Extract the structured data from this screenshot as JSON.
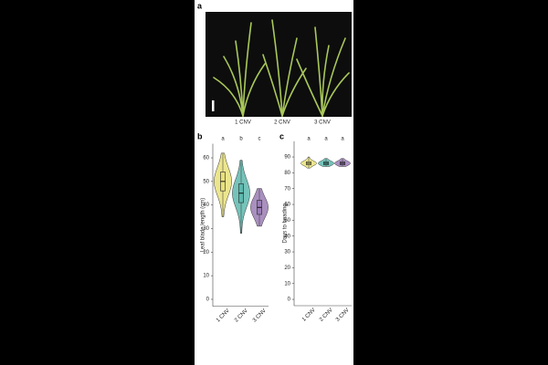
{
  "figure": {
    "panel_label": "a",
    "groups": [
      "1 CNV",
      "2 CNV",
      "3 CNV"
    ]
  },
  "chart_data": [
    {
      "type": "violin",
      "panel_label": "b",
      "y_label": "Leaf blade length (cm)",
      "categories": [
        "1 CNV",
        "2 CNV",
        "3 CNV"
      ],
      "letters": [
        "a",
        "b",
        "c"
      ],
      "colors": [
        "#e8e07a",
        "#5db8ae",
        "#9a7db4"
      ],
      "min": [
        35,
        28,
        31
      ],
      "q1": [
        46,
        41,
        36
      ],
      "median": [
        50,
        45,
        39
      ],
      "q3": [
        54,
        49,
        42
      ],
      "max": [
        62,
        59,
        47
      ],
      "ylim": [
        -3,
        66
      ],
      "yticks": [
        0,
        10,
        20,
        30,
        40,
        50,
        60
      ]
    },
    {
      "type": "violin",
      "panel_label": "c",
      "y_label": "Days to heading",
      "categories": [
        "1 CNV",
        "2 CNV",
        "3 CNV"
      ],
      "letters": [
        "a",
        "a",
        "a"
      ],
      "colors": [
        "#e8e07a",
        "#5db8ae",
        "#9a7db4"
      ],
      "min": [
        83,
        84,
        84
      ],
      "q1": [
        85,
        85,
        85
      ],
      "median": [
        86,
        86,
        86
      ],
      "q3": [
        87,
        87,
        87
      ],
      "max": [
        90,
        89,
        89
      ],
      "ylim": [
        -4,
        100
      ],
      "yticks": [
        0,
        10,
        20,
        30,
        40,
        50,
        60,
        70,
        80,
        90
      ]
    }
  ]
}
